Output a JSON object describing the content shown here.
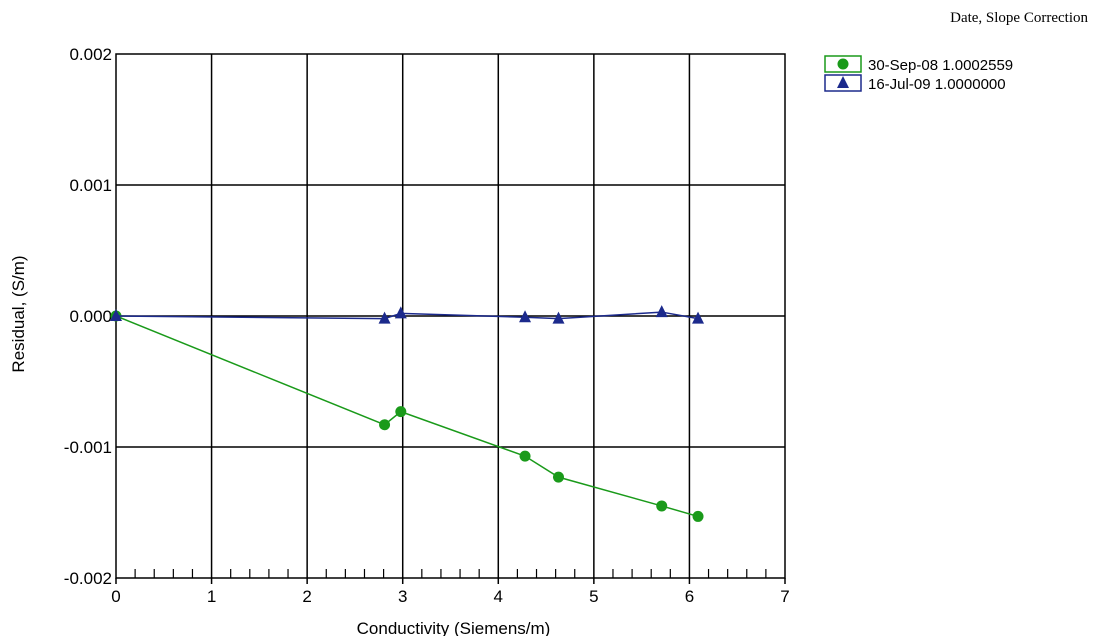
{
  "chart_data": {
    "type": "line",
    "title": "",
    "xlabel": "Conductivity (Siemens/m)",
    "ylabel": "Residual, (S/m)",
    "xlim": [
      0,
      7
    ],
    "ylim": [
      -0.002,
      0.002
    ],
    "x_ticks": [
      "0",
      "1",
      "2",
      "3",
      "4",
      "5",
      "6",
      "7"
    ],
    "y_ticks": [
      "0.002",
      "0.001",
      "0.000",
      "-0.001",
      "-0.002"
    ],
    "grid": true,
    "legend_position": "top-right",
    "legend_title": "Date, Slope Correction",
    "series": [
      {
        "name": "30-Sep-08  1.0002559",
        "color": "#1a9a1a",
        "marker": "circle",
        "x": [
          0.0,
          2.81,
          2.98,
          4.28,
          4.63,
          5.71,
          6.09
        ],
        "y": [
          0.0,
          -0.00083,
          -0.00073,
          -0.00107,
          -0.00123,
          -0.00145,
          -0.00153
        ]
      },
      {
        "name": "16-Jul-09  1.0000000",
        "color": "#1c2a8c",
        "marker": "triangle",
        "x": [
          0.0,
          2.81,
          2.98,
          4.28,
          4.63,
          5.71,
          6.09
        ],
        "y": [
          0.0,
          -2e-05,
          2e-05,
          -1e-05,
          -2e-05,
          3e-05,
          -2e-05
        ]
      }
    ]
  }
}
